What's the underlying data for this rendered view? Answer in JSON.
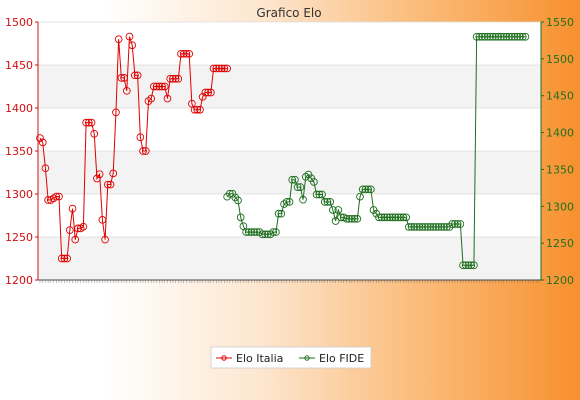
{
  "chart_data": {
    "type": "line",
    "title": "Grafico Elo",
    "xlabel": "",
    "left_axis": {
      "ylim": [
        1200,
        1500
      ],
      "ticks": [
        1200,
        1250,
        1300,
        1350,
        1400,
        1450,
        1500
      ],
      "color": "#d01010"
    },
    "right_axis": {
      "ylim": [
        1200,
        1550
      ],
      "ticks": [
        1200,
        1250,
        1300,
        1350,
        1400,
        1450,
        1500,
        1550
      ],
      "color": "#207020"
    },
    "grid": true,
    "legend_position": "bottom-center",
    "series": [
      {
        "name": "Elo Italia",
        "axis": "left",
        "color": "#e00000",
        "values": [
          1365,
          1360,
          1330,
          1293,
          1293,
          1295,
          1297,
          1297,
          1225,
          1225,
          1225,
          1258,
          1283,
          1247,
          1260,
          1260,
          1262,
          1383,
          1383,
          1383,
          1370,
          1318,
          1323,
          1270,
          1247,
          1311,
          1311,
          1324,
          1395,
          1480,
          1435,
          1435,
          1420,
          1483,
          1473,
          1438,
          1438,
          1366,
          1350,
          1350,
          1408,
          1411,
          1425,
          1425,
          1425,
          1425,
          1425,
          1411,
          1434,
          1434,
          1434,
          1434,
          1463,
          1463,
          1463,
          1463,
          1405,
          1398,
          1398,
          1398,
          1413,
          1418,
          1418,
          1418,
          1446,
          1446,
          1446,
          1446,
          1446,
          1446
        ]
      },
      {
        "name": "Elo FIDE",
        "axis": "right",
        "color": "#1e6e1e",
        "values": [
          null,
          null,
          null,
          null,
          null,
          null,
          null,
          null,
          null,
          null,
          null,
          null,
          null,
          null,
          null,
          null,
          null,
          null,
          null,
          null,
          null,
          null,
          null,
          null,
          null,
          null,
          null,
          null,
          null,
          null,
          null,
          null,
          null,
          null,
          null,
          null,
          null,
          null,
          null,
          null,
          null,
          null,
          null,
          null,
          null,
          null,
          null,
          null,
          null,
          null,
          null,
          null,
          null,
          null,
          null,
          null,
          null,
          null,
          null,
          null,
          null,
          null,
          null,
          null,
          null,
          null,
          null,
          null,
          null,
          1313,
          1317,
          1317,
          1312,
          1308,
          1285,
          1273,
          1265,
          1265,
          1265,
          1265,
          1265,
          1265,
          1262,
          1262,
          1262,
          1262,
          1265,
          1265,
          1290,
          1290,
          1303,
          1306,
          1306,
          1336,
          1336,
          1326,
          1326,
          1309,
          1340,
          1343,
          1338,
          1333,
          1316,
          1316,
          1316,
          1306,
          1306,
          1306,
          1295,
          1280,
          1295,
          1285,
          1285,
          1283,
          1283,
          1283,
          1283,
          1283,
          1313,
          1323,
          1323,
          1323,
          1323,
          1295,
          1290,
          1285,
          1285,
          1285,
          1285,
          1285,
          1285,
          1285,
          1285,
          1285,
          1285,
          1285,
          1272,
          1272,
          1272,
          1272,
          1272,
          1272,
          1272,
          1272,
          1272,
          1272,
          1272,
          1272,
          1272,
          1272,
          1272,
          1272,
          1276,
          1276,
          1276,
          1276,
          1220,
          1220,
          1220,
          1220,
          1220,
          1530,
          1530,
          1530,
          1530,
          1530,
          1530,
          1530,
          1530,
          1530,
          1530,
          1530,
          1530,
          1530,
          1530,
          1530,
          1530,
          1530,
          1530,
          1530
        ]
      }
    ],
    "point_count": 185
  },
  "legend": {
    "items": [
      {
        "label": "Elo Italia",
        "color": "#e00000"
      },
      {
        "label": "Elo FIDE",
        "color": "#1e6e1e"
      }
    ]
  }
}
